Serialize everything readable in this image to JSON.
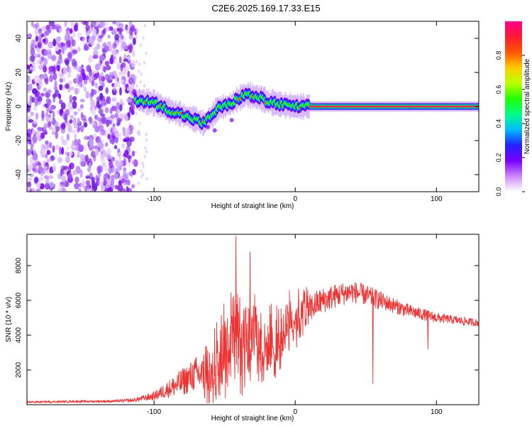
{
  "title": "C2E6.2025.169.17.33.E15",
  "colors": {
    "snr_line": "#ee3333",
    "axis": "#000000",
    "colormap": [
      "#ffffff",
      "#cc88ff",
      "#7a00ff",
      "#2222ff",
      "#00bbff",
      "#00ff88",
      "#22ff00",
      "#bbff00",
      "#ffcc00",
      "#ff5500",
      "#ff1a33",
      "#ff0088"
    ]
  },
  "chart_data": [
    {
      "type": "heatmap",
      "title": "C2E6.2025.169.17.33.E15",
      "xlabel": "Height of straight line (km)",
      "ylabel": "Frequency (Hz)",
      "xlim": [
        -190,
        130
      ],
      "ylim": [
        -50,
        50
      ],
      "x_ticks": [
        -100,
        0,
        100
      ],
      "y_ticks": [
        -40,
        -20,
        0,
        20,
        40
      ],
      "colorbar": {
        "label": "Normalized spectral amplitude",
        "range": [
          0.0,
          1.0
        ],
        "ticks": [
          0.0,
          0.2,
          0.4,
          0.6,
          0.8
        ]
      },
      "ridge": {
        "description_points_x": [
          -113,
          -100,
          -90,
          -80,
          -70,
          -65,
          -60,
          -55,
          -50,
          -45,
          -40,
          -35,
          -30,
          -25,
          -20,
          -10,
          0,
          10,
          50,
          100,
          130
        ],
        "frequency_hz": [
          4,
          2,
          -2,
          -5,
          -8,
          -10,
          -6,
          -1,
          0,
          2,
          5,
          7,
          6,
          5,
          3,
          1,
          0,
          0,
          0,
          0,
          0
        ]
      },
      "noise_region_x": [
        -190,
        -113
      ]
    },
    {
      "type": "line",
      "xlabel": "Height of straight line (km)",
      "ylabel": "SNR (10 * v/v)",
      "xlim": [
        -190,
        130
      ],
      "ylim": [
        0,
        9800
      ],
      "x_ticks": [
        -100,
        0,
        100
      ],
      "y_ticks": [
        2000,
        4000,
        6000,
        8000
      ],
      "x": [
        -190,
        -160,
        -130,
        -115,
        -100,
        -90,
        -80,
        -70,
        -60,
        -50,
        -45,
        -40,
        -35,
        -30,
        -25,
        -20,
        -15,
        -10,
        -5,
        0,
        5,
        10,
        15,
        20,
        30,
        40,
        50,
        60,
        70,
        80,
        90,
        100,
        110,
        120,
        130
      ],
      "y": [
        150,
        180,
        200,
        250,
        500,
        900,
        1300,
        1800,
        1500,
        3500,
        4200,
        3200,
        3300,
        4000,
        3600,
        3200,
        3600,
        3800,
        4600,
        5000,
        5200,
        5500,
        5800,
        6000,
        6300,
        6500,
        6300,
        6000,
        5700,
        5400,
        5200,
        5000,
        4900,
        4800,
        4700
      ],
      "spread": [
        60,
        60,
        70,
        100,
        250,
        500,
        800,
        1000,
        1100,
        1800,
        1800,
        1700,
        1600,
        1500,
        1500,
        1400,
        1300,
        1200,
        1100,
        1000,
        900,
        850,
        800,
        750,
        700,
        650,
        600,
        550,
        450,
        400,
        350,
        300,
        250,
        250,
        200
      ],
      "spikes": [
        {
          "x": -42,
          "y": 9700
        },
        {
          "x": -32,
          "y": 8800
        },
        {
          "x": 55,
          "y": 1200
        },
        {
          "x": 94,
          "y": 3200
        }
      ]
    }
  ]
}
